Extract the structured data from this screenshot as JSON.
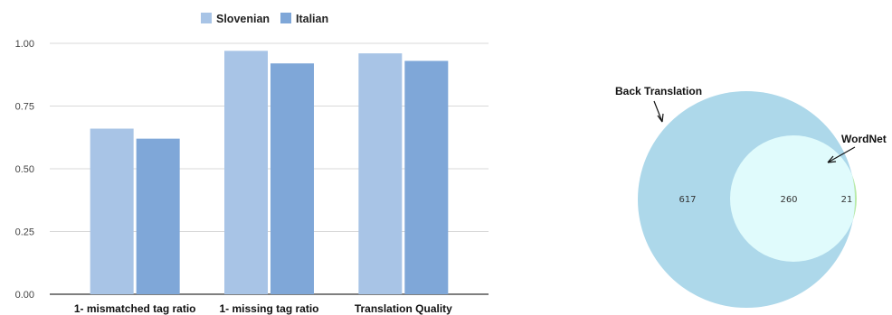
{
  "chart_data": [
    {
      "type": "bar",
      "categories": [
        "1- mismatched tag ratio",
        "1- missing  tag ratio",
        "Translation Quality"
      ],
      "series": [
        {
          "name": "Slovenian",
          "values": [
            0.66,
            0.97,
            0.96
          ],
          "color": "#a8c4e6"
        },
        {
          "name": "Italian",
          "values": [
            0.62,
            0.92,
            0.93
          ],
          "color": "#7fa7d8"
        }
      ],
      "ylim": [
        0,
        1.0
      ],
      "yticks": [
        "0.00",
        "0.25",
        "0.50",
        "0.75",
        "1.00"
      ],
      "ytick_values": [
        0,
        0.25,
        0.5,
        0.75,
        1.0
      ],
      "grid": true,
      "legend": "top-center"
    },
    {
      "type": "venn",
      "sets": [
        {
          "name": "Back Translation",
          "color": "#add8ea"
        },
        {
          "name": "WordNet",
          "color": "#b9eaa8"
        }
      ],
      "intersection_color": "#e0fbfc",
      "counts": {
        "only_back_translation": "617",
        "both": "260",
        "only_wordnet": "21"
      }
    }
  ]
}
